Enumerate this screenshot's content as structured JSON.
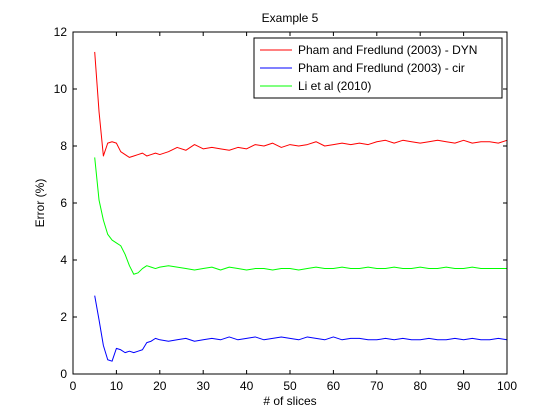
{
  "chart_data": {
    "type": "line",
    "title": "Example 5",
    "xlabel": "# of slices",
    "ylabel": "Error (%)",
    "xlim": [
      0,
      100
    ],
    "ylim": [
      0,
      12
    ],
    "xticks": [
      "0",
      "10",
      "20",
      "30",
      "40",
      "50",
      "60",
      "70",
      "80",
      "90",
      "100"
    ],
    "yticks": [
      "0",
      "2",
      "4",
      "6",
      "8",
      "10",
      "12"
    ],
    "grid": false,
    "legend_position": "top-right",
    "x": [
      5,
      6,
      7,
      8,
      9,
      10,
      11,
      12,
      13,
      14,
      15,
      16,
      17,
      18,
      19,
      20,
      22,
      24,
      26,
      28,
      30,
      32,
      34,
      36,
      38,
      40,
      42,
      44,
      46,
      48,
      50,
      52,
      54,
      56,
      58,
      60,
      62,
      64,
      66,
      68,
      70,
      72,
      74,
      76,
      78,
      80,
      82,
      84,
      86,
      88,
      90,
      92,
      94,
      96,
      98,
      100
    ],
    "series": [
      {
        "name": "Pham and Fredlund (2003) - DYN",
        "color": "#ff0000",
        "values": [
          11.3,
          9.2,
          7.65,
          8.1,
          8.15,
          8.1,
          7.8,
          7.7,
          7.6,
          7.65,
          7.7,
          7.75,
          7.65,
          7.7,
          7.75,
          7.7,
          7.8,
          7.95,
          7.85,
          8.05,
          7.9,
          7.95,
          7.9,
          7.85,
          7.95,
          7.9,
          8.05,
          8.0,
          8.1,
          7.95,
          8.05,
          8.0,
          8.05,
          8.15,
          8.0,
          8.05,
          8.1,
          8.05,
          8.1,
          8.05,
          8.15,
          8.2,
          8.1,
          8.2,
          8.15,
          8.1,
          8.15,
          8.2,
          8.15,
          8.1,
          8.2,
          8.1,
          8.15,
          8.15,
          8.1,
          8.2
        ]
      },
      {
        "name": "Pham and Fredlund (2003) - cir",
        "color": "#0000ff",
        "values": [
          2.75,
          1.9,
          1.0,
          0.5,
          0.45,
          0.9,
          0.85,
          0.75,
          0.8,
          0.75,
          0.8,
          0.85,
          1.1,
          1.15,
          1.25,
          1.2,
          1.15,
          1.2,
          1.25,
          1.15,
          1.2,
          1.25,
          1.2,
          1.3,
          1.2,
          1.25,
          1.3,
          1.2,
          1.25,
          1.3,
          1.25,
          1.2,
          1.3,
          1.25,
          1.2,
          1.3,
          1.2,
          1.25,
          1.25,
          1.2,
          1.2,
          1.25,
          1.2,
          1.25,
          1.2,
          1.2,
          1.25,
          1.2,
          1.2,
          1.25,
          1.2,
          1.25,
          1.2,
          1.2,
          1.25,
          1.2
        ]
      },
      {
        "name": "Li et al (2010)",
        "color": "#00ff00",
        "values": [
          7.6,
          6.1,
          5.4,
          4.9,
          4.7,
          4.6,
          4.5,
          4.2,
          3.8,
          3.5,
          3.55,
          3.7,
          3.8,
          3.75,
          3.7,
          3.75,
          3.8,
          3.75,
          3.7,
          3.65,
          3.7,
          3.75,
          3.65,
          3.75,
          3.7,
          3.65,
          3.7,
          3.7,
          3.65,
          3.7,
          3.7,
          3.65,
          3.7,
          3.75,
          3.7,
          3.7,
          3.75,
          3.7,
          3.7,
          3.75,
          3.7,
          3.7,
          3.75,
          3.7,
          3.7,
          3.75,
          3.7,
          3.7,
          3.75,
          3.7,
          3.7,
          3.75,
          3.7,
          3.7,
          3.7,
          3.7
        ]
      }
    ]
  }
}
